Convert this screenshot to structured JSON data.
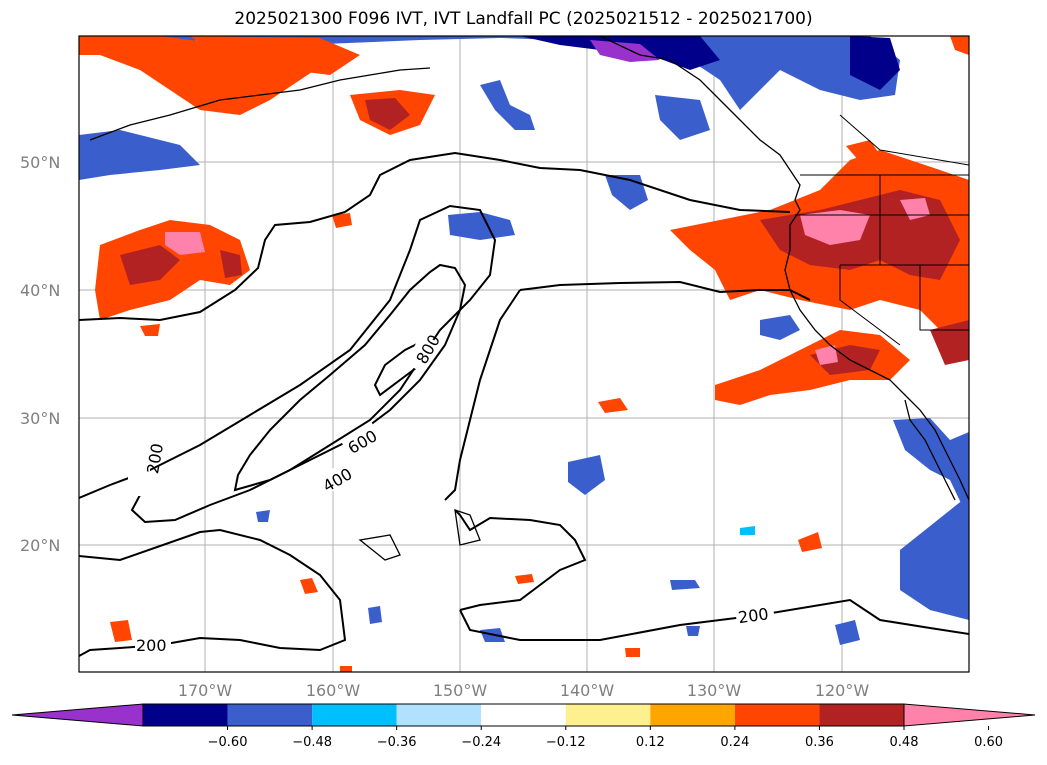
{
  "title": "2025021300 F096 IVT, IVT Landfall PC (2025021512 - 2025021700)",
  "map": {
    "lat_labels": [
      "50°N",
      "40°N",
      "30°N",
      "20°N"
    ],
    "lon_labels": [
      "170°W",
      "160°W",
      "150°W",
      "140°W",
      "130°W",
      "120°W"
    ],
    "contour_labels": [
      "800",
      "600",
      "400",
      "200",
      "200",
      "200"
    ]
  },
  "colorbar": {
    "colors": [
      "#9932cc",
      "#00008b",
      "#3a5fcd",
      "#00bfff",
      "#b0e2ff",
      "#ffffff",
      "#fff08f",
      "#ffa500",
      "#ff4500",
      "#b22222",
      "#ff82ab"
    ],
    "tick_labels": [
      "−0.60",
      "−0.48",
      "−0.36",
      "−0.24",
      "−0.12",
      "0.12",
      "0.24",
      "0.36",
      "0.48",
      "0.60"
    ]
  }
}
